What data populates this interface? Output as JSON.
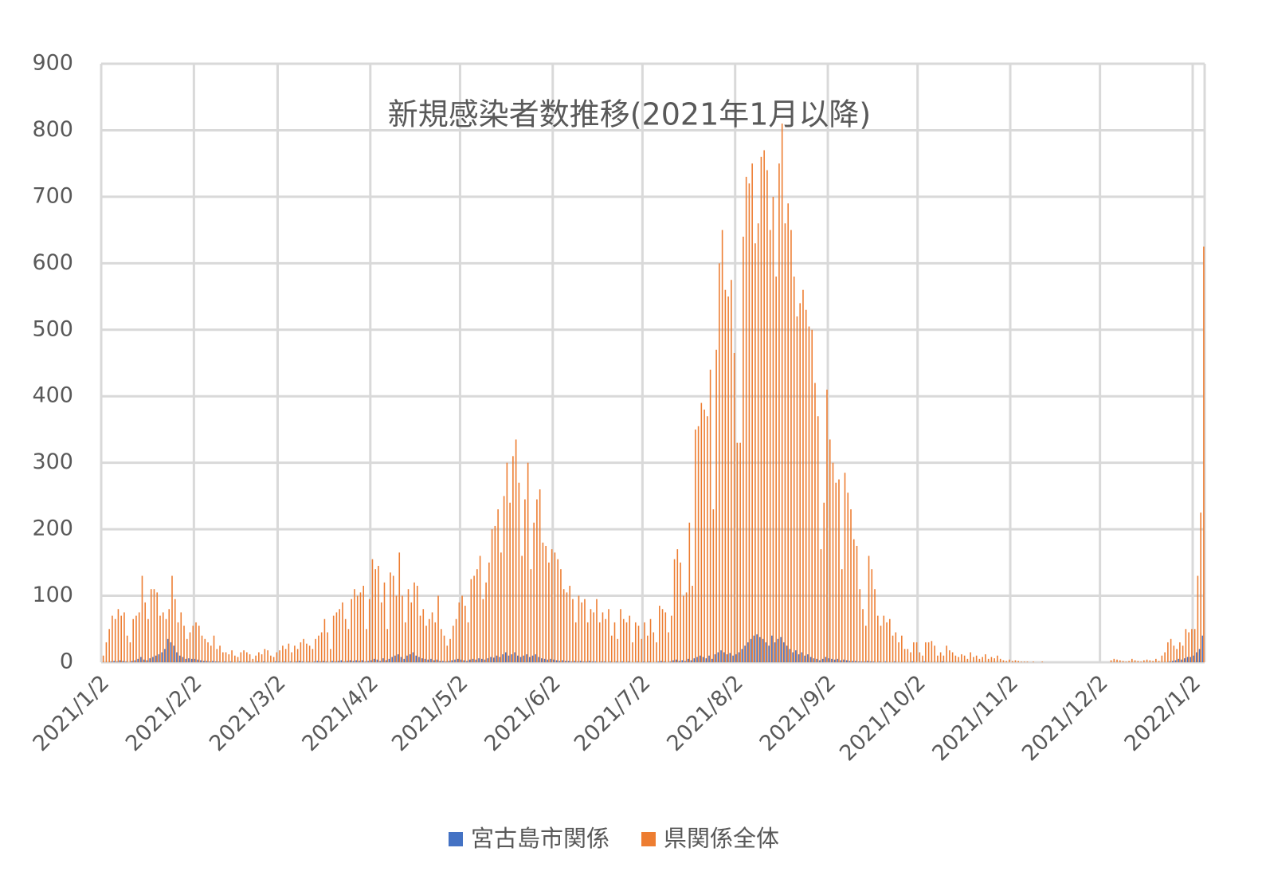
{
  "chart_data": {
    "type": "bar",
    "title": "新規感染者数推移(2021年1月以降)",
    "categories": [
      "2021/1/2",
      null,
      null,
      null,
      null,
      null,
      null,
      null,
      null,
      null,
      null,
      null,
      null,
      null,
      null,
      null,
      null,
      null,
      null,
      null,
      null,
      null,
      null,
      null,
      null,
      null,
      null,
      null,
      null,
      null,
      null,
      "2021/2/2",
      null,
      null,
      null,
      null,
      null,
      null,
      null,
      null,
      null,
      null,
      null,
      null,
      null,
      null,
      null,
      null,
      null,
      null,
      null,
      null,
      null,
      null,
      null,
      null,
      null,
      null,
      null,
      "2021/3/2",
      null,
      null,
      null,
      null,
      null,
      null,
      null,
      null,
      null,
      null,
      null,
      null,
      null,
      null,
      null,
      null,
      null,
      null,
      null,
      null,
      null,
      null,
      null,
      null,
      null,
      null,
      null,
      null,
      null,
      null,
      "2021/4/2",
      null,
      null,
      null,
      null,
      null,
      null,
      null,
      null,
      null,
      null,
      null,
      null,
      null,
      null,
      null,
      null,
      null,
      null,
      null,
      null,
      null,
      null,
      null,
      null,
      null,
      null,
      null,
      null,
      null,
      "2021/5/2",
      null,
      null,
      null,
      null,
      null,
      null,
      null,
      null,
      null,
      null,
      null,
      null,
      null,
      null,
      null,
      null,
      null,
      null,
      null,
      null,
      null,
      null,
      null,
      null,
      null,
      null,
      null,
      null,
      null,
      null,
      "2021/6/2",
      null,
      null,
      null,
      null,
      null,
      null,
      null,
      null,
      null,
      null,
      null,
      null,
      null,
      null,
      null,
      null,
      null,
      null,
      null,
      null,
      null,
      null,
      null,
      null,
      null,
      null,
      null,
      null,
      null,
      "2021/7/2",
      null,
      null,
      null,
      null,
      null,
      null,
      null,
      null,
      null,
      null,
      null,
      null,
      null,
      null,
      null,
      null,
      null,
      null,
      null,
      null,
      null,
      null,
      null,
      null,
      null,
      null,
      null,
      null,
      null,
      null,
      "2021/8/2",
      null,
      null,
      null,
      null,
      null,
      null,
      null,
      null,
      null,
      null,
      null,
      null,
      null,
      null,
      null,
      null,
      null,
      null,
      null,
      null,
      null,
      null,
      null,
      null,
      null,
      null,
      null,
      null,
      null,
      null,
      "2021/9/2",
      null,
      null,
      null,
      null,
      null,
      null,
      null,
      null,
      null,
      null,
      null,
      null,
      null,
      null,
      null,
      null,
      null,
      null,
      null,
      null,
      null,
      null,
      null,
      null,
      null,
      null,
      null,
      null,
      null,
      "2021/10/2",
      null,
      null,
      null,
      null,
      null,
      null,
      null,
      null,
      null,
      null,
      null,
      null,
      null,
      null,
      null,
      null,
      null,
      null,
      null,
      null,
      null,
      null,
      null,
      null,
      null,
      null,
      null,
      null,
      null,
      null,
      "2021/11/2",
      null,
      null,
      null,
      null,
      null,
      null,
      null,
      null,
      null,
      null,
      null,
      null,
      null,
      null,
      null,
      null,
      null,
      null,
      null,
      null,
      null,
      null,
      null,
      null,
      null,
      null,
      null,
      null,
      null,
      "2021/12/2",
      null,
      null,
      null,
      null,
      null,
      null,
      null,
      null,
      null,
      null,
      null,
      null,
      null,
      null,
      null,
      null,
      null,
      null,
      null,
      null,
      null,
      null,
      null,
      null,
      null,
      null,
      null,
      null,
      null,
      null,
      "2022/1/2",
      null,
      null,
      null
    ],
    "series": [
      {
        "name": "宮古島市関係",
        "color": "#4472c4",
        "values": [
          0,
          0,
          0,
          1,
          2,
          1,
          3,
          2,
          1,
          0,
          2,
          3,
          5,
          8,
          4,
          3,
          6,
          8,
          10,
          12,
          15,
          20,
          35,
          30,
          25,
          15,
          10,
          8,
          5,
          6,
          5,
          5,
          4,
          3,
          2,
          2,
          1,
          2,
          1,
          1,
          0,
          1,
          0,
          1,
          0,
          0,
          1,
          0,
          0,
          1,
          0,
          0,
          1,
          0,
          1,
          0,
          0,
          0,
          1,
          1,
          0,
          1,
          0,
          1,
          0,
          1,
          2,
          1,
          0,
          1,
          0,
          1,
          2,
          1,
          2,
          1,
          0,
          2,
          1,
          2,
          3,
          1,
          2,
          3,
          2,
          3,
          2,
          3,
          1,
          2,
          3,
          5,
          4,
          2,
          6,
          3,
          5,
          8,
          10,
          12,
          8,
          5,
          10,
          12,
          15,
          10,
          8,
          6,
          5,
          4,
          5,
          3,
          4,
          2,
          2,
          1,
          2,
          3,
          4,
          5,
          4,
          3,
          2,
          4,
          5,
          4,
          6,
          5,
          4,
          6,
          8,
          7,
          10,
          8,
          12,
          15,
          10,
          12,
          15,
          10,
          8,
          10,
          12,
          8,
          10,
          12,
          8,
          6,
          5,
          4,
          5,
          4,
          3,
          2,
          3,
          2,
          2,
          1,
          2,
          1,
          2,
          1,
          1,
          2,
          1,
          1,
          0,
          1,
          1,
          0,
          1,
          0,
          1,
          0,
          1,
          0,
          1,
          0,
          0,
          1,
          0,
          1,
          0,
          1,
          0,
          0,
          1,
          2,
          1,
          0,
          1,
          3,
          4,
          2,
          3,
          2,
          5,
          3,
          6,
          8,
          10,
          8,
          6,
          10,
          5,
          12,
          15,
          18,
          15,
          12,
          14,
          10,
          12,
          15,
          20,
          25,
          30,
          35,
          40,
          42,
          38,
          35,
          30,
          25,
          40,
          30,
          35,
          38,
          30,
          25,
          20,
          15,
          18,
          12,
          15,
          10,
          12,
          8,
          6,
          5,
          3,
          5,
          8,
          6,
          5,
          4,
          5,
          3,
          4,
          3,
          2,
          2,
          2,
          1,
          1,
          1,
          2,
          1,
          1,
          0,
          1,
          0,
          1,
          0,
          0,
          1,
          0,
          0,
          0,
          0,
          0,
          1,
          0,
          0,
          0,
          1,
          0,
          0,
          0,
          0,
          0,
          1,
          0,
          0,
          0,
          0,
          0,
          0,
          0,
          0,
          0,
          0,
          0,
          0,
          0,
          0,
          0,
          0,
          0,
          0,
          0,
          0,
          0,
          0,
          0,
          0,
          0,
          0,
          0,
          0,
          0,
          0,
          0,
          0,
          0,
          0,
          0,
          0,
          0,
          0,
          0,
          0,
          0,
          0,
          0,
          0,
          0,
          0,
          0,
          0,
          0,
          0,
          0,
          0,
          0,
          0,
          0,
          0,
          0,
          0,
          0,
          0,
          0,
          0,
          0,
          0,
          0,
          0,
          0,
          0,
          0,
          0,
          0,
          0,
          0,
          0,
          0,
          1,
          2,
          3,
          5,
          4,
          6,
          8,
          8,
          10,
          15,
          20,
          40
        ]
      },
      {
        "name": "県関係全体",
        "color": "#ed7d31",
        "values": [
          10,
          30,
          50,
          70,
          65,
          80,
          70,
          75,
          40,
          30,
          65,
          70,
          75,
          130,
          90,
          65,
          110,
          110,
          105,
          70,
          75,
          65,
          80,
          130,
          95,
          60,
          75,
          55,
          35,
          45,
          55,
          60,
          55,
          40,
          35,
          30,
          25,
          40,
          20,
          25,
          15,
          15,
          12,
          18,
          10,
          8,
          15,
          18,
          15,
          12,
          5,
          10,
          15,
          12,
          20,
          18,
          10,
          8,
          15,
          18,
          25,
          20,
          28,
          15,
          25,
          20,
          30,
          35,
          28,
          25,
          20,
          35,
          40,
          45,
          65,
          45,
          20,
          70,
          75,
          80,
          90,
          65,
          50,
          95,
          110,
          100,
          105,
          115,
          50,
          95,
          155,
          140,
          145,
          90,
          120,
          50,
          135,
          130,
          100,
          165,
          100,
          60,
          110,
          90,
          120,
          115,
          70,
          80,
          55,
          65,
          75,
          60,
          100,
          50,
          40,
          25,
          35,
          55,
          65,
          90,
          100,
          85,
          60,
          125,
          130,
          140,
          160,
          95,
          120,
          150,
          200,
          205,
          230,
          165,
          250,
          300,
          240,
          310,
          335,
          270,
          160,
          245,
          300,
          140,
          210,
          245,
          260,
          180,
          175,
          150,
          170,
          165,
          155,
          140,
          110,
          105,
          115,
          95,
          60,
          100,
          90,
          95,
          60,
          80,
          75,
          95,
          60,
          75,
          65,
          80,
          40,
          60,
          35,
          80,
          65,
          60,
          70,
          30,
          60,
          55,
          35,
          60,
          40,
          65,
          45,
          30,
          85,
          80,
          75,
          45,
          70,
          155,
          170,
          150,
          100,
          105,
          210,
          115,
          350,
          355,
          390,
          380,
          370,
          440,
          230,
          470,
          600,
          650,
          560,
          550,
          575,
          465,
          330,
          330,
          640,
          730,
          720,
          750,
          630,
          660,
          760,
          770,
          740,
          650,
          700,
          580,
          750,
          810,
          660,
          690,
          650,
          580,
          520,
          540,
          560,
          530,
          505,
          500,
          420,
          370,
          170,
          240,
          410,
          335,
          300,
          270,
          275,
          140,
          285,
          255,
          230,
          185,
          175,
          110,
          80,
          55,
          160,
          140,
          110,
          70,
          55,
          70,
          60,
          65,
          40,
          45,
          30,
          40,
          20,
          20,
          15,
          30,
          30,
          15,
          10,
          30,
          30,
          32,
          25,
          10,
          15,
          10,
          25,
          18,
          15,
          10,
          8,
          12,
          10,
          5,
          15,
          8,
          10,
          5,
          8,
          12,
          5,
          8,
          6,
          10,
          5,
          3,
          2,
          4,
          2,
          3,
          2,
          1,
          1,
          1,
          0,
          1,
          0,
          0,
          1,
          0,
          0,
          0,
          0,
          0,
          0,
          0,
          0,
          0,
          0,
          0,
          0,
          0,
          0,
          0,
          0,
          0,
          0,
          0,
          0,
          0,
          0,
          3,
          5,
          4,
          3,
          2,
          1,
          2,
          5,
          3,
          2,
          1,
          3,
          4,
          3,
          2,
          5,
          2,
          10,
          15,
          30,
          35,
          25,
          20,
          30,
          25,
          50,
          45,
          50,
          50,
          130,
          225,
          625
        ]
      }
    ],
    "ylim": [
      0,
      900
    ],
    "yticks": [
      0,
      100,
      200,
      300,
      400,
      500,
      600,
      700,
      800,
      900
    ],
    "grid": true,
    "legend": "bottom"
  }
}
